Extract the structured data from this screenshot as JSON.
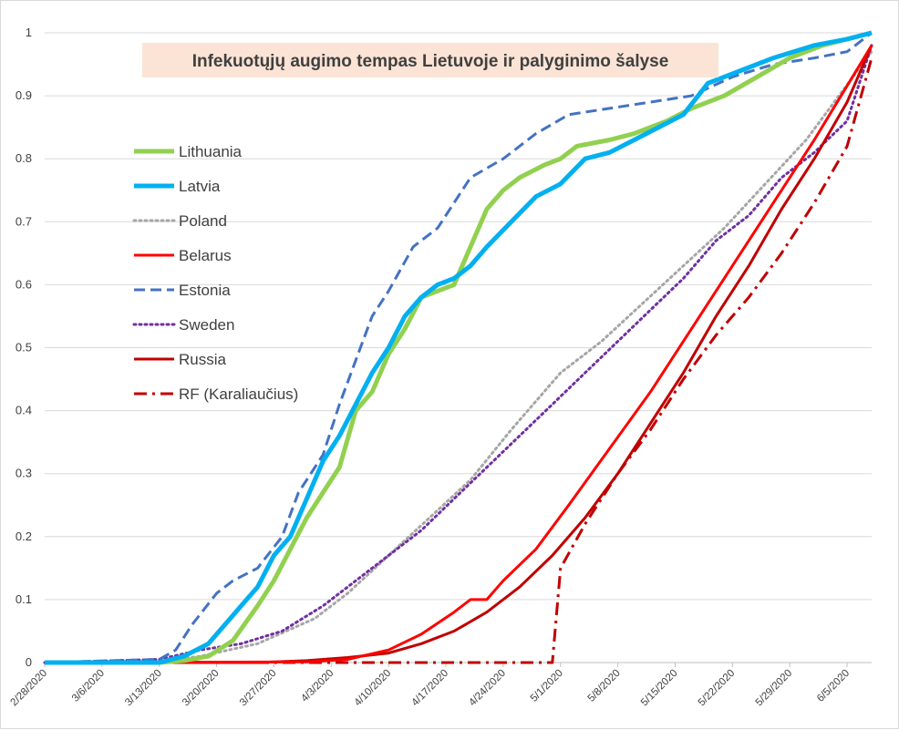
{
  "chart_data": {
    "type": "line",
    "title": "Infekuotųjų augimo tempas Lietuvoje ir palyginimo šalyse",
    "xlabel": "",
    "ylabel": "",
    "ylim": [
      0,
      1
    ],
    "yticks": [
      "0",
      "0.1",
      "0.2",
      "0.3",
      "0.4",
      "0.5",
      "0.6",
      "0.7",
      "0.8",
      "0.9",
      "1"
    ],
    "xticks": [
      "2/28/2020",
      "3/6/2020",
      "3/13/2020",
      "3/20/2020",
      "3/27/2020",
      "4/3/2020",
      "4/10/2020",
      "4/17/2020",
      "4/24/2020",
      "5/1/2020",
      "5/8/2020",
      "5/15/2020",
      "5/22/2020",
      "5/29/2020",
      "6/5/2020"
    ],
    "x_range": [
      "2/28/2020",
      "6/8/2020"
    ],
    "grid": "horizontal",
    "legend_position": "left",
    "title_background": "#fbe4d5",
    "series": [
      {
        "name": "Lithuania",
        "color": "#92d050",
        "style": "solid",
        "width": 5,
        "points": [
          [
            "2/28/2020",
            0
          ],
          [
            "3/13/2020",
            0
          ],
          [
            "3/16/2020",
            0.003
          ],
          [
            "3/19/2020",
            0.01
          ],
          [
            "3/22/2020",
            0.035
          ],
          [
            "3/25/2020",
            0.09
          ],
          [
            "3/27/2020",
            0.13
          ],
          [
            "3/29/2020",
            0.18
          ],
          [
            "3/31/2020",
            0.23
          ],
          [
            "4/2/2020",
            0.27
          ],
          [
            "4/4/2020",
            0.31
          ],
          [
            "4/6/2020",
            0.4
          ],
          [
            "4/8/2020",
            0.43
          ],
          [
            "4/10/2020",
            0.49
          ],
          [
            "4/12/2020",
            0.53
          ],
          [
            "4/14/2020",
            0.58
          ],
          [
            "4/16/2020",
            0.59
          ],
          [
            "4/18/2020",
            0.6
          ],
          [
            "4/20/2020",
            0.66
          ],
          [
            "4/22/2020",
            0.72
          ],
          [
            "4/24/2020",
            0.75
          ],
          [
            "4/26/2020",
            0.77
          ],
          [
            "4/29/2020",
            0.79
          ],
          [
            "5/1/2020",
            0.8
          ],
          [
            "5/3/2020",
            0.82
          ],
          [
            "5/7/2020",
            0.83
          ],
          [
            "5/10/2020",
            0.84
          ],
          [
            "5/14/2020",
            0.86
          ],
          [
            "5/17/2020",
            0.88
          ],
          [
            "5/21/2020",
            0.9
          ],
          [
            "5/25/2020",
            0.93
          ],
          [
            "5/29/2020",
            0.96
          ],
          [
            "6/2/2020",
            0.98
          ],
          [
            "6/8/2020",
            1
          ]
        ]
      },
      {
        "name": "Latvia",
        "color": "#00b0f0",
        "style": "solid",
        "width": 5,
        "points": [
          [
            "2/28/2020",
            0
          ],
          [
            "3/13/2020",
            0
          ],
          [
            "3/16/2020",
            0.01
          ],
          [
            "3/19/2020",
            0.03
          ],
          [
            "3/21/2020",
            0.06
          ],
          [
            "3/23/2020",
            0.09
          ],
          [
            "3/25/2020",
            0.12
          ],
          [
            "3/27/2020",
            0.17
          ],
          [
            "3/29/2020",
            0.2
          ],
          [
            "3/31/2020",
            0.26
          ],
          [
            "4/2/2020",
            0.32
          ],
          [
            "4/4/2020",
            0.36
          ],
          [
            "4/6/2020",
            0.41
          ],
          [
            "4/8/2020",
            0.46
          ],
          [
            "4/10/2020",
            0.5
          ],
          [
            "4/12/2020",
            0.55
          ],
          [
            "4/14/2020",
            0.58
          ],
          [
            "4/16/2020",
            0.6
          ],
          [
            "4/18/2020",
            0.61
          ],
          [
            "4/20/2020",
            0.63
          ],
          [
            "4/22/2020",
            0.66
          ],
          [
            "4/25/2020",
            0.7
          ],
          [
            "4/28/2020",
            0.74
          ],
          [
            "5/1/2020",
            0.76
          ],
          [
            "5/4/2020",
            0.8
          ],
          [
            "5/7/2020",
            0.81
          ],
          [
            "5/10/2020",
            0.83
          ],
          [
            "5/13/2020",
            0.85
          ],
          [
            "5/16/2020",
            0.87
          ],
          [
            "5/19/2020",
            0.92
          ],
          [
            "5/23/2020",
            0.94
          ],
          [
            "5/27/2020",
            0.96
          ],
          [
            "6/1/2020",
            0.98
          ],
          [
            "6/5/2020",
            0.99
          ],
          [
            "6/8/2020",
            1
          ]
        ]
      },
      {
        "name": "Poland",
        "color": "#a6a6a6",
        "style": "dotted",
        "width": 3,
        "points": [
          [
            "2/28/2020",
            0
          ],
          [
            "3/13/2020",
            0.002
          ],
          [
            "3/18/2020",
            0.01
          ],
          [
            "3/25/2020",
            0.03
          ],
          [
            "4/1/2020",
            0.07
          ],
          [
            "4/5/2020",
            0.11
          ],
          [
            "4/10/2020",
            0.17
          ],
          [
            "4/15/2020",
            0.23
          ],
          [
            "4/20/2020",
            0.29
          ],
          [
            "4/25/2020",
            0.37
          ],
          [
            "5/1/2020",
            0.46
          ],
          [
            "5/6/2020",
            0.51
          ],
          [
            "5/11/2020",
            0.57
          ],
          [
            "5/16/2020",
            0.63
          ],
          [
            "5/21/2020",
            0.69
          ],
          [
            "5/26/2020",
            0.76
          ],
          [
            "5/31/2020",
            0.83
          ],
          [
            "6/4/2020",
            0.9
          ],
          [
            "6/8/2020",
            0.97
          ]
        ]
      },
      {
        "name": "Belarus",
        "color": "#ff0000",
        "style": "solid",
        "width": 3,
        "points": [
          [
            "2/28/2020",
            0
          ],
          [
            "3/31/2020",
            0.001
          ],
          [
            "4/5/2020",
            0.005
          ],
          [
            "4/10/2020",
            0.02
          ],
          [
            "4/14/2020",
            0.045
          ],
          [
            "4/18/2020",
            0.08
          ],
          [
            "4/20/2020",
            0.1
          ],
          [
            "4/22/2020",
            0.1
          ],
          [
            "4/24/2020",
            0.13
          ],
          [
            "4/28/2020",
            0.18
          ],
          [
            "5/2/2020",
            0.25
          ],
          [
            "5/7/2020",
            0.34
          ],
          [
            "5/12/2020",
            0.43
          ],
          [
            "5/17/2020",
            0.53
          ],
          [
            "5/22/2020",
            0.63
          ],
          [
            "5/27/2020",
            0.73
          ],
          [
            "6/1/2020",
            0.83
          ],
          [
            "6/8/2020",
            0.98
          ]
        ]
      },
      {
        "name": "Estonia",
        "color": "#4472c4",
        "style": "dashed",
        "width": 3,
        "points": [
          [
            "2/28/2020",
            0
          ],
          [
            "3/13/2020",
            0.005
          ],
          [
            "3/15/2020",
            0.02
          ],
          [
            "3/17/2020",
            0.06
          ],
          [
            "3/20/2020",
            0.11
          ],
          [
            "3/22/2020",
            0.13
          ],
          [
            "3/25/2020",
            0.15
          ],
          [
            "3/28/2020",
            0.2
          ],
          [
            "3/30/2020",
            0.27
          ],
          [
            "4/2/2020",
            0.33
          ],
          [
            "4/4/2020",
            0.41
          ],
          [
            "4/6/2020",
            0.48
          ],
          [
            "4/8/2020",
            0.55
          ],
          [
            "4/10/2020",
            0.59
          ],
          [
            "4/13/2020",
            0.66
          ],
          [
            "4/16/2020",
            0.69
          ],
          [
            "4/20/2020",
            0.77
          ],
          [
            "4/24/2020",
            0.8
          ],
          [
            "4/28/2020",
            0.84
          ],
          [
            "5/2/2020",
            0.87
          ],
          [
            "5/7/2020",
            0.88
          ],
          [
            "5/12/2020",
            0.89
          ],
          [
            "5/17/2020",
            0.9
          ],
          [
            "5/22/2020",
            0.93
          ],
          [
            "5/27/2020",
            0.95
          ],
          [
            "6/1/2020",
            0.96
          ],
          [
            "6/5/2020",
            0.97
          ],
          [
            "6/8/2020",
            1
          ]
        ]
      },
      {
        "name": "Sweden",
        "color": "#7030a0",
        "style": "dotted",
        "width": 3,
        "points": [
          [
            "2/28/2020",
            0
          ],
          [
            "3/13/2020",
            0.005
          ],
          [
            "3/18/2020",
            0.02
          ],
          [
            "3/23/2020",
            0.03
          ],
          [
            "3/28/2020",
            0.05
          ],
          [
            "4/2/2020",
            0.09
          ],
          [
            "4/6/2020",
            0.13
          ],
          [
            "4/10/2020",
            0.17
          ],
          [
            "4/14/2020",
            0.21
          ],
          [
            "4/18/2020",
            0.26
          ],
          [
            "4/22/2020",
            0.31
          ],
          [
            "4/26/2020",
            0.36
          ],
          [
            "4/30/2020",
            0.41
          ],
          [
            "5/4/2020",
            0.46
          ],
          [
            "5/8/2020",
            0.51
          ],
          [
            "5/12/2020",
            0.56
          ],
          [
            "5/16/2020",
            0.61
          ],
          [
            "5/20/2020",
            0.67
          ],
          [
            "5/24/2020",
            0.71
          ],
          [
            "5/28/2020",
            0.77
          ],
          [
            "6/1/2020",
            0.81
          ],
          [
            "6/5/2020",
            0.86
          ],
          [
            "6/8/2020",
            0.98
          ]
        ]
      },
      {
        "name": "Russia",
        "color": "#c00000",
        "style": "solid",
        "width": 3,
        "points": [
          [
            "2/28/2020",
            0
          ],
          [
            "3/25/2020",
            0
          ],
          [
            "3/31/2020",
            0.003
          ],
          [
            "4/5/2020",
            0.008
          ],
          [
            "4/10/2020",
            0.015
          ],
          [
            "4/14/2020",
            0.03
          ],
          [
            "4/18/2020",
            0.05
          ],
          [
            "4/22/2020",
            0.08
          ],
          [
            "4/26/2020",
            0.12
          ],
          [
            "4/30/2020",
            0.17
          ],
          [
            "5/4/2020",
            0.23
          ],
          [
            "5/8/2020",
            0.3
          ],
          [
            "5/12/2020",
            0.38
          ],
          [
            "5/16/2020",
            0.46
          ],
          [
            "5/20/2020",
            0.55
          ],
          [
            "5/24/2020",
            0.63
          ],
          [
            "5/28/2020",
            0.72
          ],
          [
            "6/1/2020",
            0.8
          ],
          [
            "6/5/2020",
            0.89
          ],
          [
            "6/8/2020",
            0.98
          ]
        ]
      },
      {
        "name": "RF (Karaliaučius)",
        "color": "#c00000",
        "style": "dashdot",
        "width": 3,
        "points": [
          [
            "2/28/2020",
            0
          ],
          [
            "4/30/2020",
            0
          ],
          [
            "5/1/2020",
            0.15
          ],
          [
            "5/4/2020",
            0.22
          ],
          [
            "5/8/2020",
            0.3
          ],
          [
            "5/12/2020",
            0.37
          ],
          [
            "5/16/2020",
            0.45
          ],
          [
            "5/20/2020",
            0.52
          ],
          [
            "5/24/2020",
            0.58
          ],
          [
            "5/28/2020",
            0.65
          ],
          [
            "6/1/2020",
            0.73
          ],
          [
            "6/5/2020",
            0.82
          ],
          [
            "6/8/2020",
            0.96
          ]
        ]
      }
    ]
  }
}
